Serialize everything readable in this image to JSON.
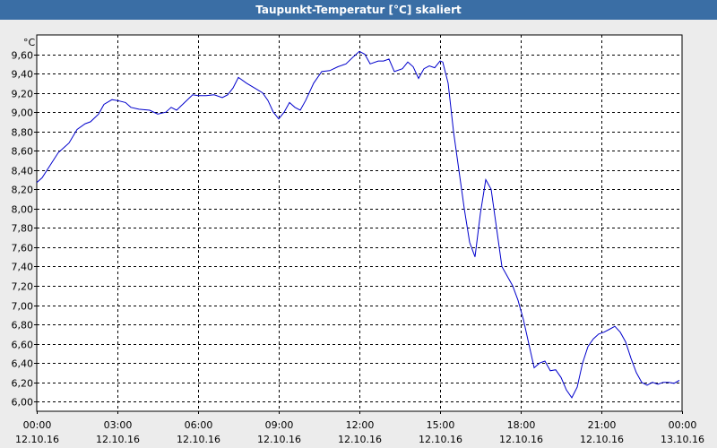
{
  "window": {
    "title": "Taupunkt-Temperatur [°C] skaliert"
  },
  "chart_data": {
    "type": "line",
    "title": "Taupunkt-Temperatur [°C] skaliert",
    "ylabel": "°C",
    "xlabel": "",
    "ylim": [
      5.9,
      9.8
    ],
    "xlim_hours": [
      0,
      24
    ],
    "grid": true,
    "line_color": "#0000cc",
    "yticks": [
      "6,00",
      "6,20",
      "6,40",
      "6,60",
      "6,80",
      "7,00",
      "7,20",
      "7,40",
      "7,60",
      "7,80",
      "8,00",
      "8,20",
      "8,40",
      "8,60",
      "8,80",
      "9,00",
      "9,20",
      "9,40",
      "9,60"
    ],
    "ytick_values": [
      6.0,
      6.2,
      6.4,
      6.6,
      6.8,
      7.0,
      7.2,
      7.4,
      7.6,
      7.8,
      8.0,
      8.2,
      8.4,
      8.6,
      8.8,
      9.0,
      9.2,
      9.4,
      9.6
    ],
    "xticks": [
      {
        "time": "00:00",
        "date": "12.10.16"
      },
      {
        "time": "03:00",
        "date": "12.10.16"
      },
      {
        "time": "06:00",
        "date": "12.10.16"
      },
      {
        "time": "09:00",
        "date": "12.10.16"
      },
      {
        "time": "12:00",
        "date": "12.10.16"
      },
      {
        "time": "15:00",
        "date": "12.10.16"
      },
      {
        "time": "18:00",
        "date": "12.10.16"
      },
      {
        "time": "21:00",
        "date": "12.10.16"
      },
      {
        "time": "00:00",
        "date": "13.10.16"
      }
    ],
    "series": [
      {
        "x_hours": [
          0,
          0.2,
          0.5,
          0.8,
          1.0,
          1.2,
          1.5,
          1.8,
          2.0,
          2.3,
          2.5,
          2.8,
          3.0,
          3.3,
          3.5,
          3.8,
          4.2,
          4.5,
          4.8,
          5.0,
          5.2,
          5.5,
          5.8,
          6.0,
          6.3,
          6.6,
          6.9,
          7.1,
          7.3,
          7.5,
          7.8,
          8.1,
          8.4,
          8.6,
          8.8,
          9.0,
          9.2,
          9.4,
          9.6,
          9.8,
          10.0,
          10.3,
          10.6,
          10.9,
          11.2,
          11.5,
          11.8,
          12.0,
          12.2,
          12.4,
          12.7,
          12.9,
          13.1,
          13.3,
          13.6,
          13.8,
          14.0,
          14.2,
          14.4,
          14.6,
          14.8,
          15.0,
          15.1,
          15.3,
          15.5,
          15.7,
          15.9,
          16.1,
          16.3,
          16.5,
          16.7,
          16.9,
          17.1,
          17.3,
          17.5,
          17.7,
          17.9,
          18.1,
          18.3,
          18.5,
          18.7,
          18.9,
          19.1,
          19.3,
          19.5,
          19.7,
          19.9,
          20.1,
          20.3,
          20.5,
          20.7,
          20.9,
          21.1,
          21.3,
          21.5,
          21.7,
          21.9,
          22.1,
          22.3,
          22.5,
          22.7,
          22.9,
          23.1,
          23.3,
          23.5,
          23.7,
          23.9
        ],
        "values": [
          8.27,
          8.32,
          8.45,
          8.58,
          8.63,
          8.68,
          8.82,
          8.88,
          8.9,
          8.98,
          9.08,
          9.13,
          9.12,
          9.1,
          9.05,
          9.03,
          9.02,
          8.98,
          9.0,
          9.05,
          9.02,
          9.1,
          9.18,
          9.17,
          9.17,
          9.18,
          9.15,
          9.18,
          9.25,
          9.36,
          9.3,
          9.25,
          9.2,
          9.12,
          9.0,
          8.93,
          9.0,
          9.1,
          9.05,
          9.02,
          9.12,
          9.3,
          9.42,
          9.43,
          9.47,
          9.5,
          9.58,
          9.63,
          9.6,
          9.5,
          9.53,
          9.53,
          9.55,
          9.42,
          9.45,
          9.52,
          9.47,
          9.35,
          9.45,
          9.48,
          9.46,
          9.53,
          9.52,
          9.3,
          8.8,
          8.4,
          8.0,
          7.65,
          7.5,
          7.95,
          8.3,
          8.2,
          7.8,
          7.4,
          7.3,
          7.2,
          7.05,
          6.85,
          6.6,
          6.35,
          6.4,
          6.42,
          6.32,
          6.33,
          6.25,
          6.12,
          6.04,
          6.15,
          6.4,
          6.57,
          6.65,
          6.7,
          6.72,
          6.75,
          6.78,
          6.72,
          6.62,
          6.45,
          6.3,
          6.2,
          6.17,
          6.2,
          6.18,
          6.2,
          6.2,
          6.19,
          6.22
        ]
      }
    ]
  }
}
